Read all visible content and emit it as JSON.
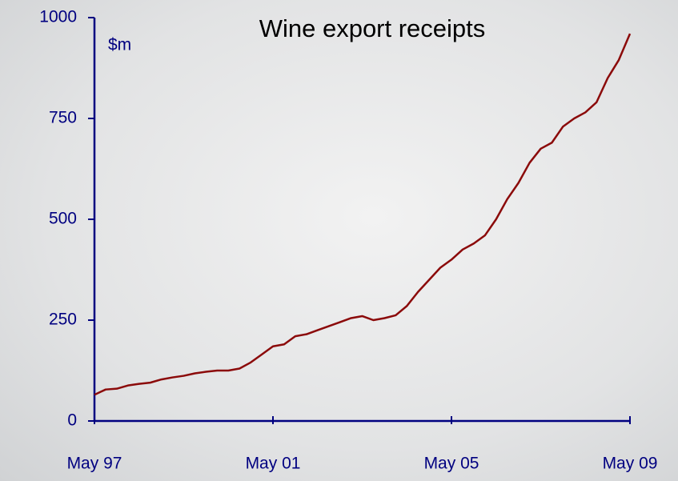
{
  "chart_data": {
    "type": "line",
    "title": "Wine export receipts",
    "y_label": "$m",
    "categories": [
      "May 97",
      null,
      null,
      null,
      null,
      null,
      null,
      null,
      null,
      null,
      null,
      null,
      null,
      null,
      null,
      null,
      "May 01",
      null,
      null,
      null,
      null,
      null,
      null,
      null,
      null,
      null,
      null,
      null,
      null,
      null,
      null,
      null,
      "May 05",
      null,
      null,
      null,
      null,
      null,
      null,
      null,
      null,
      null,
      null,
      null,
      null,
      null,
      null,
      null,
      "May 09"
    ],
    "series": [
      {
        "name": "Wine export receipts",
        "color": "#8b0a0a",
        "values": [
          65,
          78,
          80,
          88,
          92,
          95,
          103,
          108,
          112,
          118,
          122,
          125,
          125,
          130,
          145,
          165,
          185,
          190,
          210,
          215,
          225,
          235,
          245,
          255,
          260,
          250,
          255,
          262,
          285,
          320,
          350,
          380,
          400,
          425,
          440,
          460,
          500,
          550,
          590,
          640,
          675,
          690,
          730,
          750,
          765,
          790,
          850,
          895,
          960
        ]
      }
    ],
    "ylim": [
      0,
      1000
    ],
    "yticks": [
      0,
      250,
      500,
      750,
      1000
    ],
    "axis_color": "#000080"
  }
}
